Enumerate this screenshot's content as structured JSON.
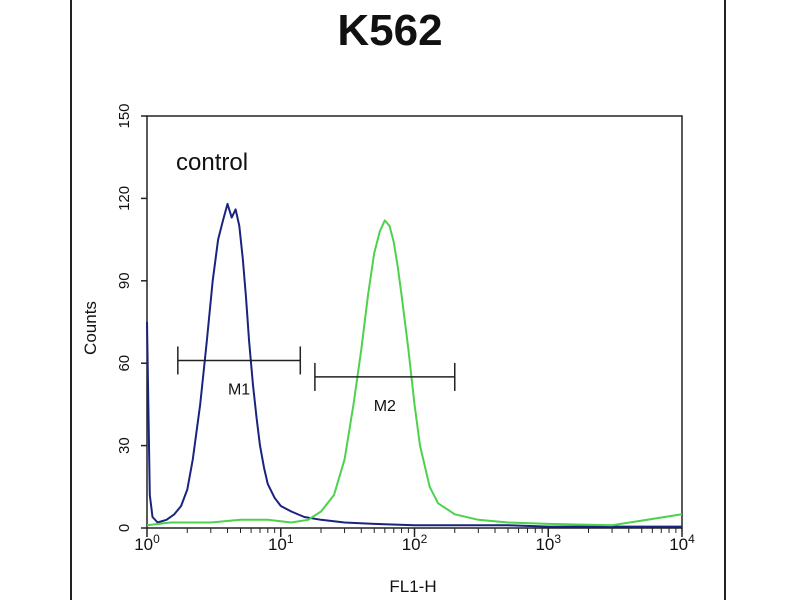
{
  "chart_data": {
    "type": "line",
    "title": "K562",
    "xlabel": "FL1-H",
    "ylabel": "Counts",
    "x_scale": "log",
    "xlim": [
      1,
      10000
    ],
    "ylim": [
      0,
      150
    ],
    "x_ticks": [
      {
        "value": 1,
        "base": "10",
        "exp": "0"
      },
      {
        "value": 10,
        "base": "10",
        "exp": "1"
      },
      {
        "value": 100,
        "base": "10",
        "exp": "2"
      },
      {
        "value": 1000,
        "base": "10",
        "exp": "3"
      },
      {
        "value": 10000,
        "base": "10",
        "exp": "4"
      }
    ],
    "y_ticks": [
      0,
      30,
      60,
      90,
      120,
      150
    ],
    "annotation": "control",
    "series": [
      {
        "color": "#1a237e",
        "x": [
          1.0,
          1.05,
          1.1,
          1.2,
          1.4,
          1.6,
          1.8,
          2.0,
          2.2,
          2.5,
          2.8,
          3.1,
          3.4,
          3.7,
          4.0,
          4.3,
          4.6,
          4.9,
          5.2,
          5.5,
          5.8,
          6.2,
          6.6,
          7.0,
          7.5,
          8.0,
          9.0,
          10.0,
          12.0,
          15.0,
          20.0,
          30.0,
          50.0,
          100.0,
          200.0,
          500.0,
          1000.0,
          3000.0,
          10000.0
        ],
        "y": [
          75,
          12,
          4,
          2,
          3,
          5,
          8,
          14,
          25,
          45,
          68,
          90,
          105,
          112,
          118,
          113,
          116,
          110,
          98,
          84,
          68,
          52,
          40,
          30,
          22,
          16,
          11,
          8,
          6,
          4,
          3,
          2,
          1.5,
          1,
          1,
          1,
          0.5,
          0.5,
          0.5
        ]
      },
      {
        "color": "#4cd24c",
        "x": [
          1.0,
          1.5,
          2.0,
          3.0,
          5.0,
          8.0,
          12.0,
          16.0,
          20.0,
          25.0,
          30.0,
          35.0,
          40.0,
          45.0,
          50.0,
          55.0,
          60.0,
          65.0,
          70.0,
          75.0,
          80.0,
          90.0,
          100.0,
          110.0,
          130.0,
          150.0,
          200.0,
          300.0,
          500.0,
          1000.0,
          3000.0,
          10000.0
        ],
        "y": [
          1,
          2,
          2,
          2,
          3,
          3,
          2,
          3,
          6,
          12,
          25,
          45,
          65,
          85,
          100,
          108,
          112,
          110,
          104,
          95,
          85,
          65,
          45,
          30,
          15,
          9,
          5,
          3,
          2,
          1.5,
          1,
          5
        ]
      }
    ],
    "markers": [
      {
        "label": "M1",
        "x_start": 1.7,
        "x_end": 14.0,
        "y": 61
      },
      {
        "label": "M2",
        "x_start": 18.0,
        "x_end": 200.0,
        "y": 55
      }
    ]
  }
}
